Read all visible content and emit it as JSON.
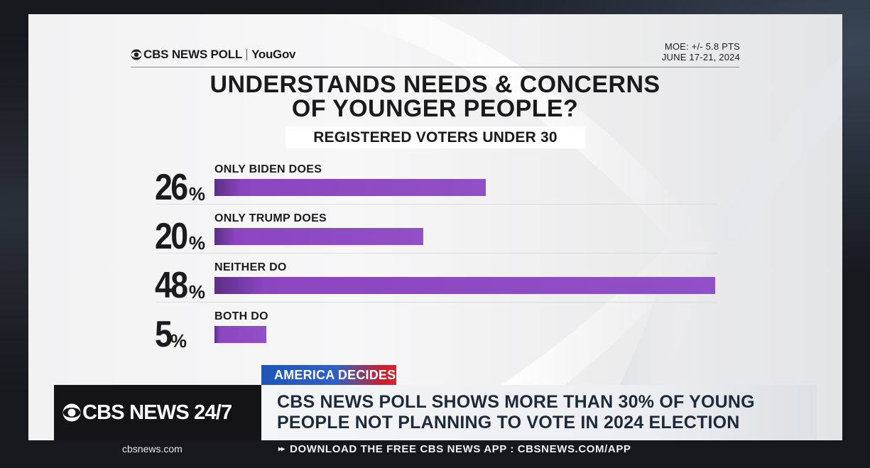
{
  "brand": {
    "name": "CBS NEWS POLL",
    "partner": "YouGov",
    "eye_icon": "cbs-eye-icon"
  },
  "meta": {
    "moe": "MOE: +/- 5.8 PTS",
    "dates": "JUNE 17-21, 2024"
  },
  "chart_data": {
    "type": "bar",
    "orientation": "horizontal",
    "title": "UNDERSTANDS NEEDS & CONCERNS OF YOUNGER PEOPLE?",
    "title_lines": [
      "UNDERSTANDS NEEDS & CONCERNS",
      "OF YOUNGER PEOPLE?"
    ],
    "subtitle": "REGISTERED VOTERS UNDER 30",
    "categories": [
      "ONLY BIDEN DOES",
      "ONLY TRUMP DOES",
      "NEITHER DO",
      "BOTH DO"
    ],
    "values": [
      26,
      20,
      48,
      5
    ],
    "unit": "%",
    "xlim": [
      0,
      48
    ],
    "bar_color": "#8e4cc4",
    "grid": false,
    "legend": "none"
  },
  "lower_third": {
    "tag": "AMERICA DECIDES",
    "network": "CBS NEWS 24/7",
    "headline_lines": [
      "CBS NEWS POLL SHOWS MORE THAN 30% OF YOUNG",
      "PEOPLE NOT PLANNING TO VOTE IN 2024 ELECTION"
    ],
    "tag_colors": [
      "#1f55b8",
      "#d52630"
    ]
  },
  "ticker": {
    "site": "cbsnews.com",
    "arrows_icon": "double-chevron-icon",
    "message": "DOWNLOAD THE FREE CBS NEWS APP : CBSNEWS.COM/APP"
  }
}
